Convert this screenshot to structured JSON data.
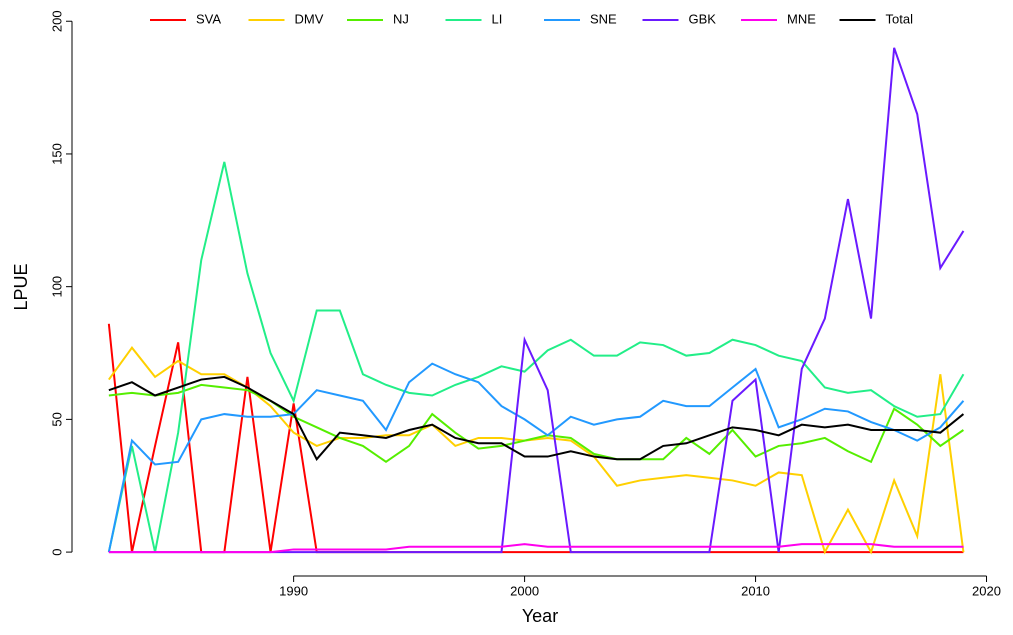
{
  "chart_data": {
    "type": "line",
    "xlabel": "Year",
    "ylabel": "LPUE",
    "x": [
      1982,
      1983,
      1984,
      1985,
      1986,
      1987,
      1988,
      1989,
      1990,
      1991,
      1992,
      1993,
      1994,
      1995,
      1996,
      1997,
      1998,
      1999,
      2000,
      2001,
      2002,
      2003,
      2004,
      2005,
      2006,
      2007,
      2008,
      2009,
      2010,
      2011,
      2012,
      2013,
      2014,
      2015,
      2016,
      2017,
      2018,
      2019
    ],
    "xlim": [
      1981.4,
      2020.8
    ],
    "xticks": [
      1990,
      2000,
      2010,
      2020
    ],
    "ylim": [
      -7.5,
      208
    ],
    "yticks": [
      0,
      50,
      100,
      150,
      200
    ],
    "legend": "top",
    "series": [
      {
        "name": "SVA",
        "color": "#ff0000",
        "values": [
          86,
          0,
          40,
          79,
          0,
          0,
          66,
          0,
          56,
          0,
          0,
          0,
          0,
          0,
          0,
          0,
          0,
          0,
          0,
          0,
          0,
          0,
          0,
          0,
          0,
          0,
          0,
          0,
          0,
          0,
          0,
          0,
          0,
          0,
          0,
          0,
          0,
          0
        ]
      },
      {
        "name": "DMV",
        "color": "#ffd000",
        "values": [
          65,
          77,
          66,
          72,
          67,
          67,
          62,
          55,
          45,
          40,
          43,
          43,
          44,
          44,
          48,
          40,
          43,
          43,
          42,
          43,
          42,
          36,
          25,
          27,
          28,
          29,
          28,
          27,
          25,
          30,
          29,
          0,
          16,
          0,
          27,
          6,
          67,
          0
        ]
      },
      {
        "name": "NJ",
        "color": "#55ee00",
        "values": [
          59,
          60,
          59,
          60,
          63,
          62,
          61,
          57,
          51,
          47,
          43,
          40,
          34,
          40,
          52,
          45,
          39,
          40,
          42,
          44,
          43,
          37,
          35,
          35,
          35,
          43,
          37,
          46,
          36,
          40,
          41,
          43,
          38,
          34,
          54,
          48,
          40,
          46
        ]
      },
      {
        "name": "LI",
        "color": "#22ee88",
        "values": [
          0,
          40,
          0,
          45,
          110,
          147,
          105,
          75,
          57,
          91,
          91,
          67,
          63,
          60,
          59,
          63,
          66,
          70,
          68,
          76,
          80,
          74,
          74,
          79,
          78,
          74,
          75,
          80,
          78,
          74,
          72,
          62,
          60,
          61,
          55,
          51,
          52,
          67
        ]
      },
      {
        "name": "SNE",
        "color": "#2299ff",
        "values": [
          0,
          42,
          33,
          34,
          50,
          52,
          51,
          51,
          52,
          61,
          59,
          57,
          46,
          64,
          71,
          67,
          64,
          55,
          50,
          44,
          51,
          48,
          50,
          51,
          57,
          55,
          55,
          62,
          69,
          47,
          50,
          54,
          53,
          49,
          46,
          42,
          47,
          57
        ]
      },
      {
        "name": "GBK",
        "color": "#6a1aff",
        "values": [
          0,
          0,
          0,
          0,
          0,
          0,
          0,
          0,
          0,
          0,
          0,
          0,
          0,
          0,
          0,
          0,
          0,
          0,
          80,
          61,
          0,
          0,
          0,
          0,
          0,
          0,
          0,
          57,
          65,
          0,
          69,
          88,
          133,
          88,
          190,
          165,
          107,
          121
        ]
      },
      {
        "name": "MNE",
        "color": "#ff00ee",
        "values": [
          0,
          0,
          0,
          0,
          0,
          0,
          0,
          0,
          1,
          1,
          1,
          1,
          1,
          2,
          2,
          2,
          2,
          2,
          3,
          2,
          2,
          2,
          2,
          2,
          2,
          2,
          2,
          2,
          2,
          2,
          3,
          3,
          3,
          3,
          2,
          2,
          2,
          2
        ]
      },
      {
        "name": "Total",
        "color": "#000000",
        "values": [
          61,
          64,
          59,
          62,
          65,
          66,
          62,
          57,
          52,
          35,
          45,
          44,
          43,
          46,
          48,
          43,
          41,
          41,
          36,
          36,
          38,
          36,
          35,
          35,
          40,
          41,
          44,
          47,
          46,
          44,
          48,
          47,
          48,
          46,
          46,
          46,
          45,
          52
        ]
      }
    ]
  }
}
